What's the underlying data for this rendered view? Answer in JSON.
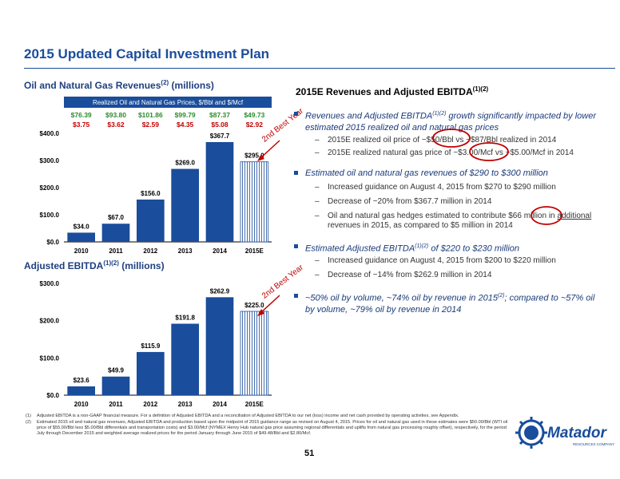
{
  "page": {
    "title": "2015 Updated Capital Investment Plan",
    "page_number": "51"
  },
  "left": {
    "rev_title": "Oil and Natural Gas Revenues",
    "rev_sup": "(2)",
    "rev_units": "(millions)",
    "ebitda_title": "Adjusted EBITDA",
    "ebitda_sup": "(1)(2)",
    "ebitda_units": "(millions)"
  },
  "prices": {
    "header": "Realized Oil and Natural Gas Prices, $/Bbl and $/Mcf",
    "oil": [
      "$76.39",
      "$93.80",
      "$101.86",
      "$99.79",
      "$87.37",
      "$49.73"
    ],
    "gas": [
      "$3.75",
      "$3.62",
      "$2.59",
      "$4.35",
      "$5.08",
      "$2.92"
    ]
  },
  "annotations": {
    "best1": "2nd Best Year",
    "best2": "2nd Best Year"
  },
  "chart_data": [
    {
      "type": "bar",
      "title": "Oil and Natural Gas Revenues (2) (millions)",
      "categories": [
        "2010",
        "2011",
        "2012",
        "2013",
        "2014",
        "2015E"
      ],
      "values": [
        34.0,
        67.0,
        156.0,
        269.0,
        367.7,
        295.0
      ],
      "value_labels": [
        "$34.0",
        "$67.0",
        "$156.0",
        "$269.0",
        "$367.7",
        "$295.0"
      ],
      "yticks": [
        "$0.0",
        "$100.0",
        "$200.0",
        "$300.0",
        "$400.0"
      ],
      "ylim": [
        0,
        400
      ],
      "color": "#1a4d9b",
      "grid": false
    },
    {
      "type": "bar",
      "title": "Adjusted EBITDA (1)(2) (millions)",
      "categories": [
        "2010",
        "2011",
        "2012",
        "2013",
        "2014",
        "2015E"
      ],
      "values": [
        23.6,
        49.9,
        115.9,
        191.8,
        262.9,
        225.0
      ],
      "value_labels": [
        "$23.6",
        "$49.9",
        "$115.9",
        "$191.8",
        "$262.9",
        "$225.0"
      ],
      "yticks": [
        "$0.0",
        "$100.0",
        "$200.0",
        "$300.0"
      ],
      "ylim": [
        0,
        300
      ],
      "color": "#1a4d9b",
      "grid": false
    }
  ],
  "right": {
    "title": "2015E Revenues and Adjusted EBITDA",
    "title_sup": "(1)(2)",
    "b1a": "Revenues and Adjusted EBITDA",
    "b1sup": "(1)(2)",
    "b1b": " growth significantly impacted by lower estimated 2015 realized oil and natural gas prices",
    "b1s1": "2015E realized oil price of ~$50/Bbl vs ~$87/Bbl realized in 2014",
    "b1s2": "2015E realized natural gas price of ~$3.00/Mcf vs ~$5.00/Mcf in 2014",
    "b2": "Estimated oil and natural gas revenues of $290 to $300 million",
    "b2s1": "Increased guidance on August 4, 2015 from $270 to $290 million",
    "b2s2": "Decrease of ~20% from $367.7 million in 2014",
    "b2s3a": "Oil and natural gas hedges estimated to contribute $66 million in ",
    "b2s3u": "additional",
    "b2s3b": " revenues in 2015, as compared to $5 million in 2014",
    "b3a": "Estimated Adjusted EBITDA",
    "b3sup": "(1)(2)",
    "b3b": " of $220 to $230 million",
    "b3s1": "Increased guidance on August 4, 2015 from $200 to $220 million",
    "b3s2": "Decrease of ~14% from $262.9 million in 2014",
    "b4a": "~50% oil by volume, ~74% oil by revenue in 2015",
    "b4sup": "(2)",
    "b4b": "; compared to ~57% oil by volume, ~79% oil by revenue in 2014"
  },
  "footnotes": [
    {
      "n": "(1)",
      "text": "Adjusted EBITDA is a non-GAAP financial measure. For a definition of Adjusted EBITDA and a reconciliation of Adjusted EBITDA to our net (loss) income and net cash provided by operating activities, see Appendix."
    },
    {
      "n": "(2)",
      "text": "Estimated 2015 oil and natural gas revenues, Adjusted EBITDA and production based upon the midpoint of 2015 guidance range as revised on August 4, 2015. Prices for oil and natural gas used in these estimates were $50.00/Bbl (WTI oil price of $55.00/Bbl less $5.00/Bbl differentials and transportation costs) and $3.00/Mcf (NYMEX Henry Hub natural gas price assuming regional differentials and uplifts from natural gas processing roughly offset), respectively, for the period July through December 2015 and weighted average realized prices for the period January through June 2015 of $49.48/Bbl and $2.80/Mcf."
    }
  ],
  "logo": {
    "text": "Matador",
    "sub": "RESOURCES COMPANY"
  }
}
